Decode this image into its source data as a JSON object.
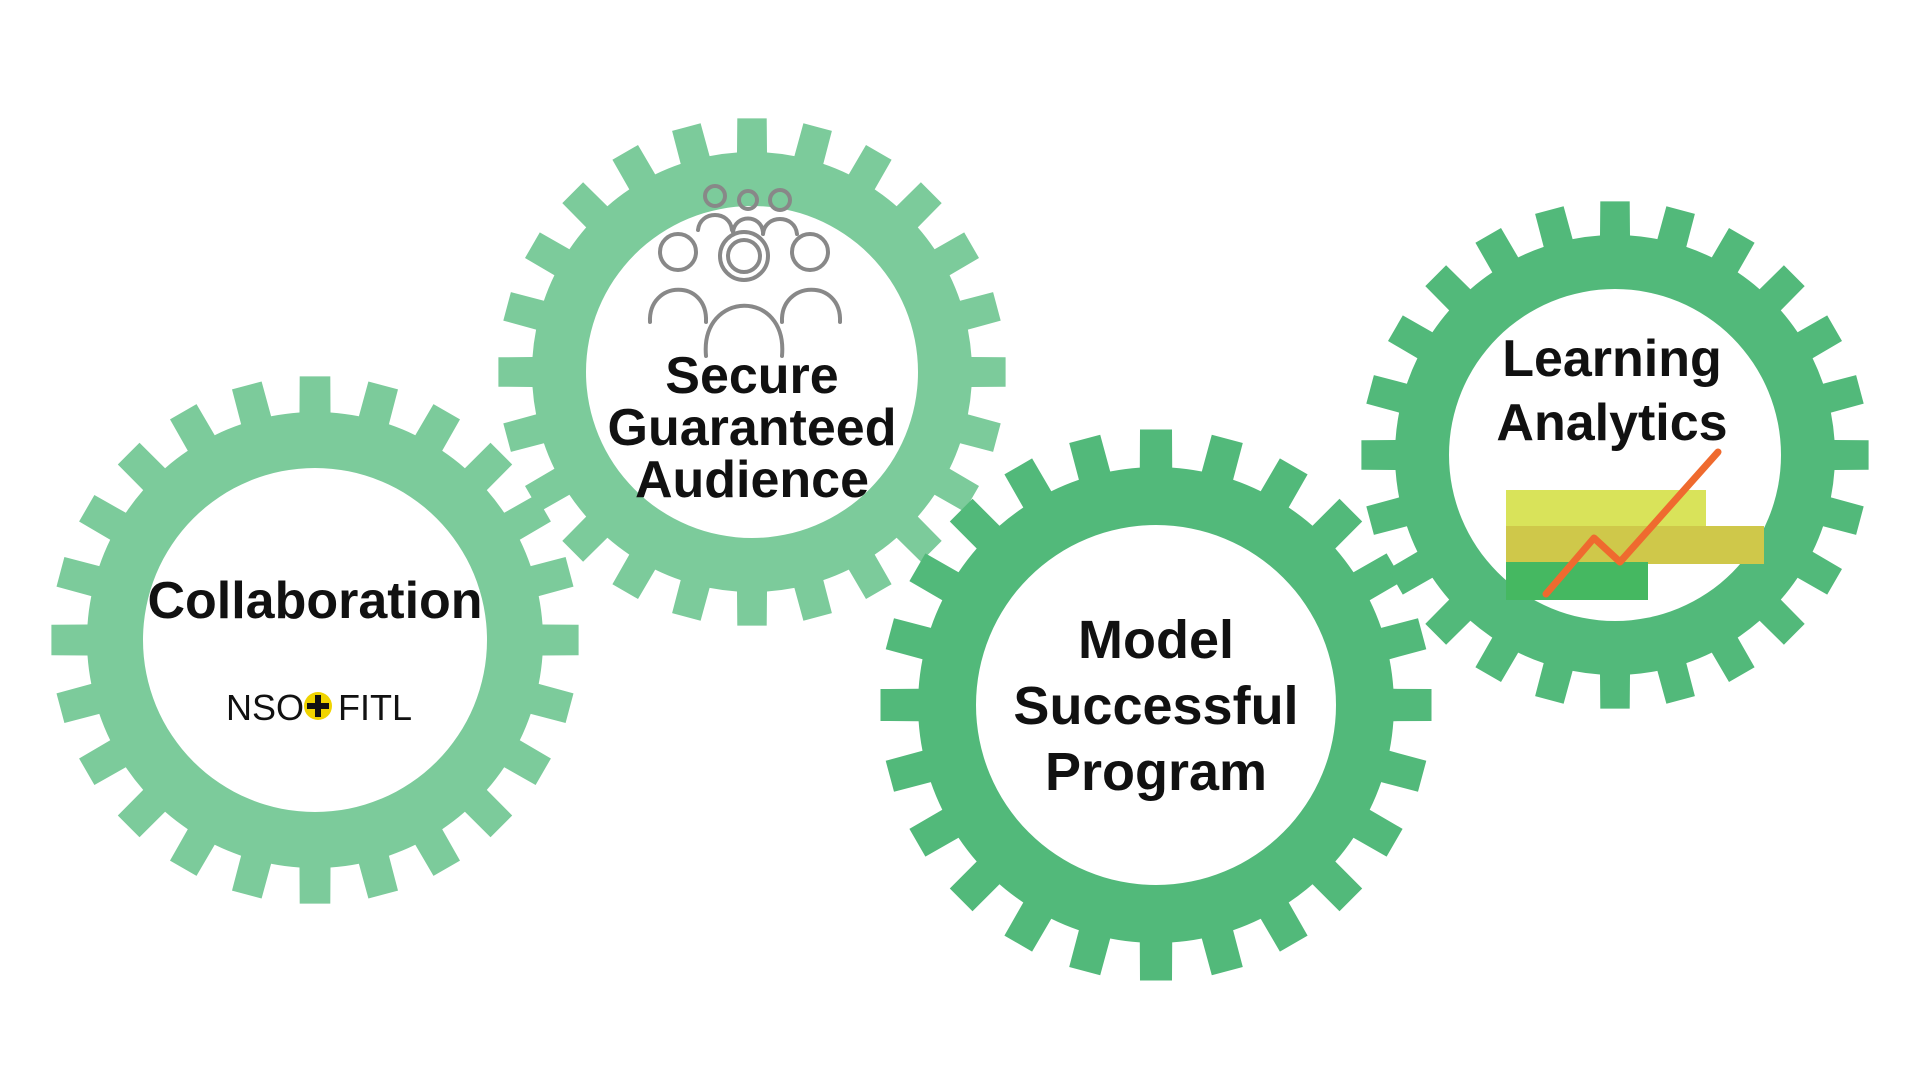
{
  "colors": {
    "gear_light": "#7ccb9b",
    "gear_medium": "#52b97a",
    "text": "#111111",
    "plus_badge": "#f0d400",
    "people_icon": "#888888",
    "bar_top": "#d9e35a",
    "bar_middle": "#cfc84a",
    "bar_bottom": "#45b861",
    "trend_line": "#ef6a2f"
  },
  "gears": [
    {
      "id": "collaboration",
      "title_lines": [
        "Collaboration"
      ],
      "subtitle_left": "NSO",
      "subtitle_right": "FITL",
      "icon": "plus-badge-icon"
    },
    {
      "id": "audience",
      "title_lines": [
        "Secure",
        "Guaranteed",
        "Audience"
      ],
      "icon": "people-group-icon"
    },
    {
      "id": "model",
      "title_lines": [
        "Model",
        "Successful",
        "Program"
      ]
    },
    {
      "id": "analytics",
      "title_lines": [
        "Learning",
        "Analytics"
      ],
      "icon": "trend-chart-icon"
    }
  ]
}
